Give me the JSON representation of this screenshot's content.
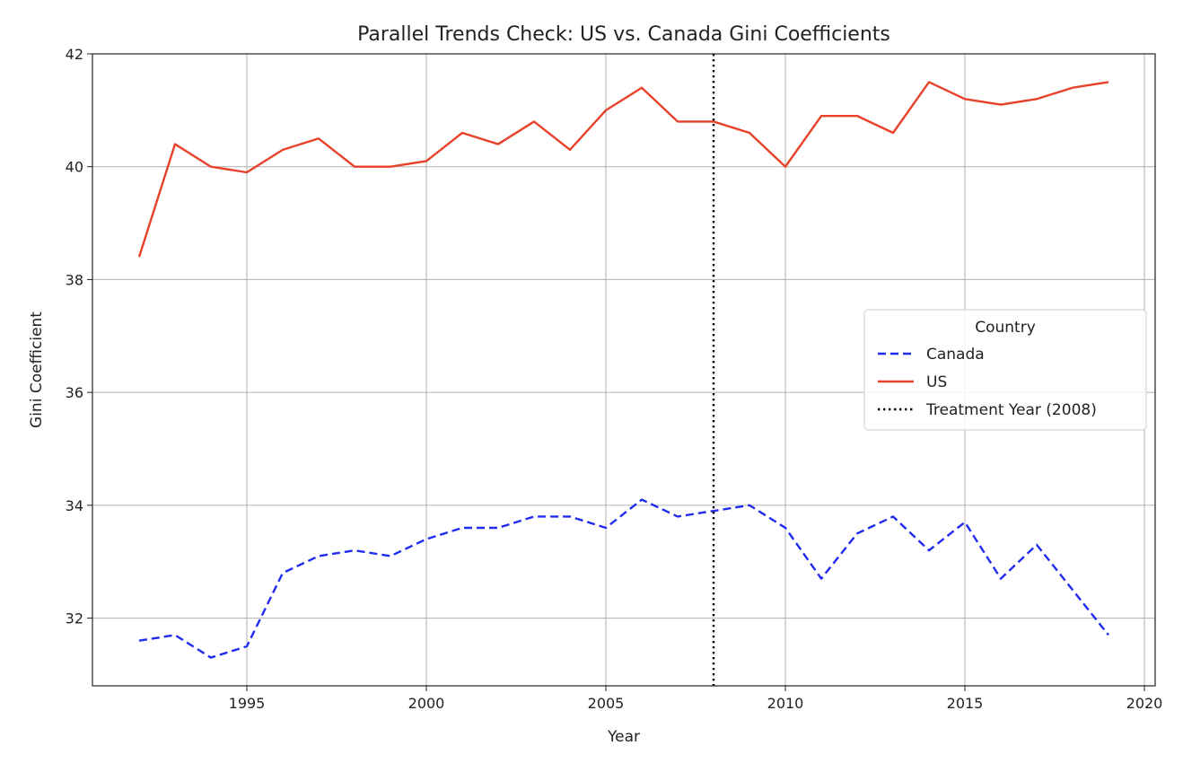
{
  "chart_data": {
    "type": "line",
    "title": "Parallel Trends Check: US vs. Canada Gini Coefficients",
    "xlabel": "Year",
    "ylabel": "Gini Coefficient",
    "xlim": [
      1990.7,
      2020.3
    ],
    "ylim": [
      30.8,
      42
    ],
    "xticks": [
      1995,
      2000,
      2005,
      2010,
      2015,
      2020
    ],
    "yticks": [
      32,
      34,
      36,
      38,
      40,
      42
    ],
    "grid": true,
    "legend": {
      "title": "Country",
      "placement": "center-right"
    },
    "x": [
      1992,
      1993,
      1994,
      1995,
      1996,
      1997,
      1998,
      1999,
      2000,
      2001,
      2002,
      2003,
      2004,
      2005,
      2006,
      2007,
      2008,
      2009,
      2010,
      2011,
      2012,
      2013,
      2014,
      2015,
      2016,
      2017,
      2018,
      2019
    ],
    "series": [
      {
        "name": "Canada",
        "color": "#1f2cf0",
        "style": "dashed",
        "values": [
          31.6,
          31.7,
          31.3,
          31.5,
          32.8,
          33.1,
          33.2,
          33.1,
          33.4,
          33.6,
          33.6,
          33.8,
          33.8,
          33.6,
          34.1,
          33.8,
          33.9,
          34.0,
          33.6,
          32.7,
          33.5,
          33.8,
          33.2,
          33.7,
          32.7,
          33.3,
          32.5,
          31.7
        ]
      },
      {
        "name": "US",
        "color": "#e8412a",
        "style": "solid",
        "values": [
          38.4,
          40.4,
          40.0,
          39.9,
          40.3,
          40.5,
          40.0,
          40.0,
          40.1,
          40.6,
          40.4,
          40.8,
          40.3,
          41.0,
          41.4,
          40.8,
          40.8,
          40.6,
          40.0,
          40.9,
          40.9,
          40.6,
          41.5,
          41.2,
          41.1,
          41.2,
          41.4,
          41.5
        ]
      }
    ],
    "vline": {
      "x": 2008,
      "label": "Treatment Year (2008)",
      "color": "#000000",
      "style": "dotted"
    }
  }
}
